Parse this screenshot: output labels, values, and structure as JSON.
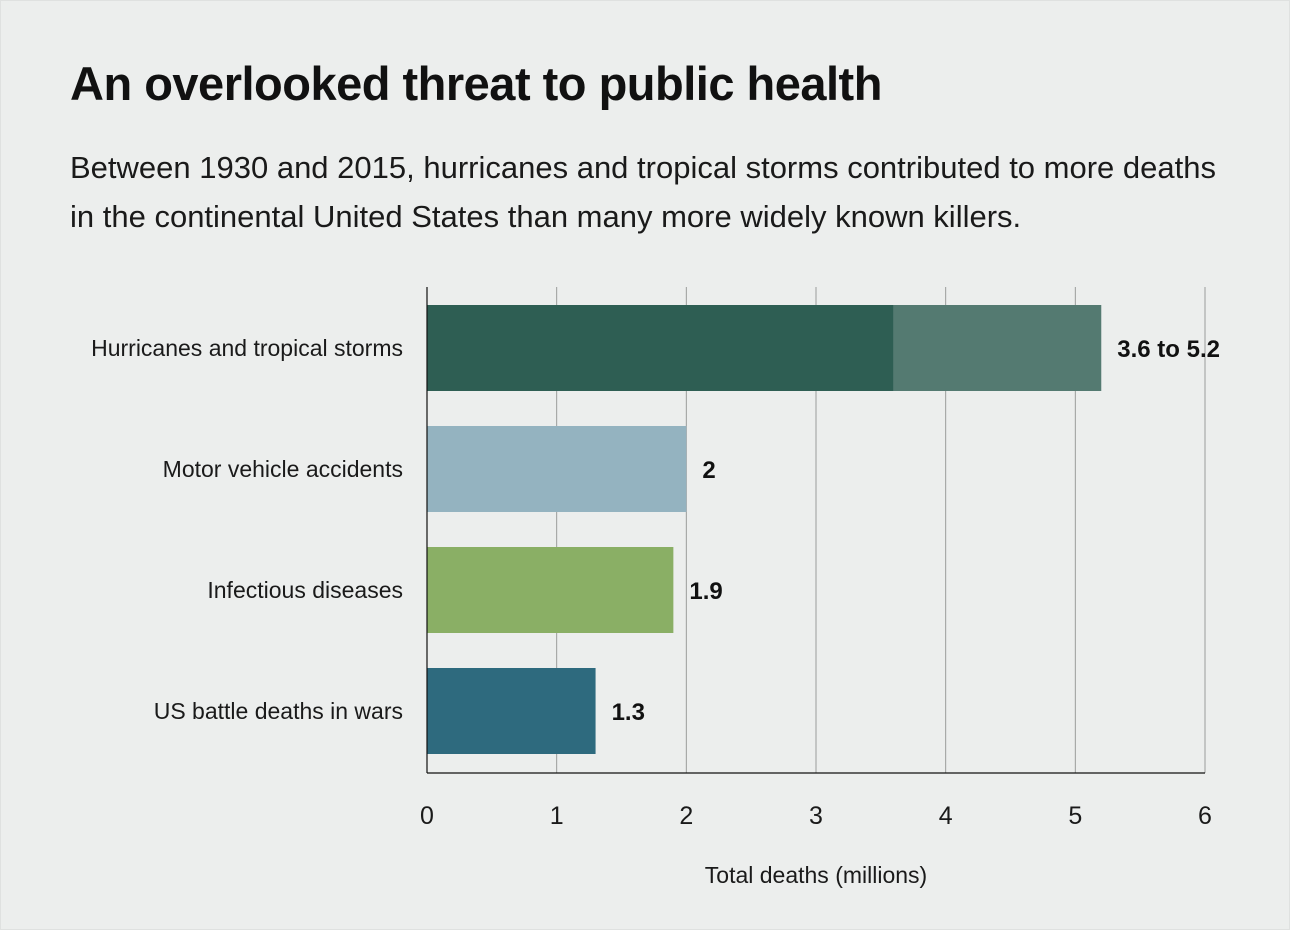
{
  "chart_data": {
    "type": "bar",
    "orientation": "horizontal",
    "title": "An overlooked threat to public health",
    "subtitle": "Between 1930 and 2015, hurricanes and tropical storms contributed to more deaths in the continental United States than many more widely known killers.",
    "xlabel": "Total deaths (millions)",
    "ylabel": "",
    "xlim": [
      0,
      6
    ],
    "ticks": [
      "0",
      "1",
      "2",
      "3",
      "4",
      "5",
      "6"
    ],
    "grid": true,
    "categories": [
      "Hurricanes and tropical storms",
      "Motor vehicle accidents",
      "Infectious diseases",
      "US battle deaths in wars"
    ],
    "bars": [
      {
        "category": "Hurricanes and tropical storms",
        "low": 3.6,
        "high": 5.2,
        "label": "3.6 to 5.2",
        "color": "#2e5e53",
        "range_color": "#547a71"
      },
      {
        "category": "Motor vehicle accidents",
        "value": 2,
        "label": "2",
        "color": "#94b3c0"
      },
      {
        "category": "Infectious diseases",
        "value": 1.9,
        "label": "1.9",
        "color": "#8aaf65"
      },
      {
        "category": "US battle deaths in wars",
        "value": 1.3,
        "label": "1.3",
        "color": "#2e6a7e"
      }
    ]
  }
}
